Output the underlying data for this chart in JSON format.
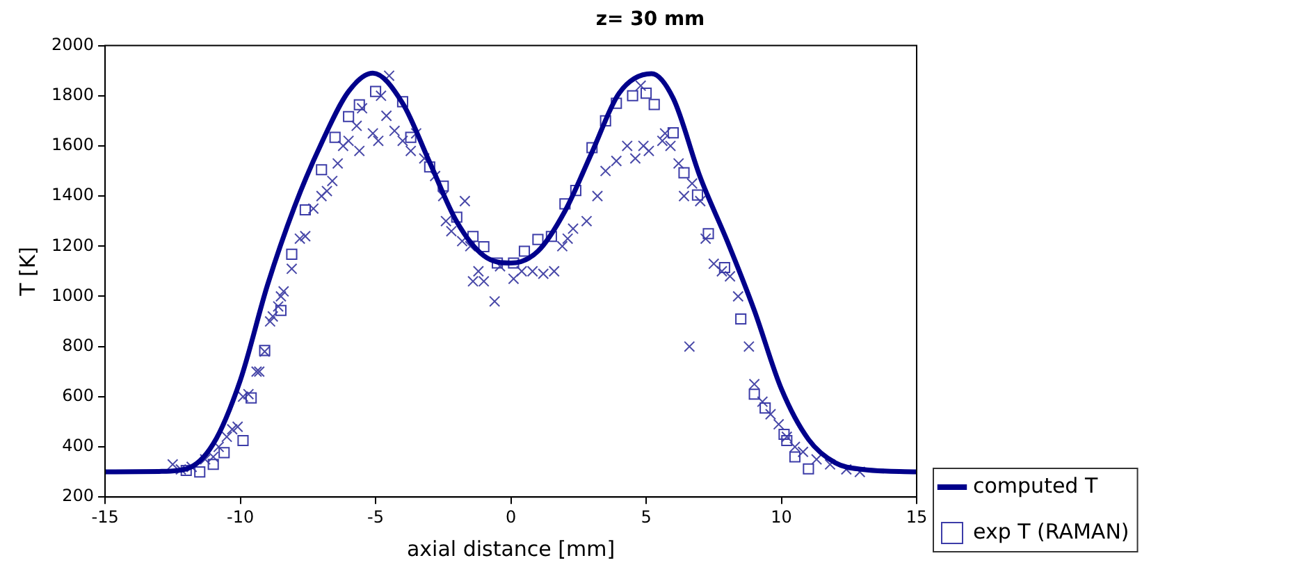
{
  "chart_data": {
    "type": "scatter",
    "title": "z= 30 mm",
    "xlabel": "axial distance [mm]",
    "ylabel": "T [K]",
    "xlim": [
      -15,
      15
    ],
    "xticks": [
      -15,
      -10,
      -5,
      0,
      5,
      10,
      15
    ],
    "ylim": [
      200,
      2000
    ],
    "yticks": [
      200,
      400,
      600,
      800,
      1000,
      1200,
      1400,
      1600,
      1800,
      2000
    ],
    "grid": false,
    "legend": "bottom right",
    "series": [
      {
        "name": "computed T",
        "type": "line",
        "marker": "none",
        "line_style": "solid",
        "color": "#00008b",
        "x": [
          -15,
          -13,
          -12,
          -11,
          -10,
          -9,
          -8,
          -7,
          -6,
          -5.1,
          -4,
          -3,
          -2,
          -1,
          0,
          1,
          2,
          3,
          4,
          5.2,
          6,
          7,
          8,
          9,
          10,
          11,
          12,
          13,
          15
        ],
        "values": [
          300,
          302,
          312,
          412,
          666,
          1044,
          1357,
          1611,
          1817,
          1890,
          1770,
          1534,
          1298,
          1162,
          1133,
          1180,
          1340,
          1575,
          1810,
          1888,
          1790,
          1475,
          1220,
          944,
          631,
          430,
          336,
          310,
          300
        ]
      },
      {
        "name": "exp T (RAMAN)",
        "type": "scatter",
        "marker": "square",
        "color": "#3c3ca8",
        "x": [
          -12,
          -11.5,
          -11,
          -10.6,
          -9.9,
          -9.6,
          -9.1,
          -8.5,
          -8.1,
          -7.6,
          -7,
          -6.5,
          -6,
          -5.6,
          -5,
          -4,
          -3.7,
          -3,
          -2.5,
          -2,
          -1.4,
          -1,
          -0.5,
          0.1,
          0.5,
          1,
          1.5,
          2,
          2.4,
          3,
          3.5,
          3.9,
          4.5,
          5,
          5.3,
          6,
          6.4,
          6.9,
          7.3,
          7.9,
          8.5,
          9,
          9.4,
          10.1,
          10.2,
          10.5,
          11
        ],
        "values": [
          306,
          300,
          330,
          377,
          425,
          595,
          784,
          944,
          1168,
          1345,
          1505,
          1634,
          1717,
          1764,
          1817,
          1776,
          1634,
          1516,
          1440,
          1316,
          1239,
          1198,
          1133,
          1133,
          1180,
          1227,
          1239,
          1369,
          1422,
          1593,
          1700,
          1770,
          1800,
          1810,
          1765,
          1652,
          1493,
          1404,
          1250,
          1115,
          910,
          610,
          555,
          450,
          425,
          360,
          312
        ]
      },
      {
        "type": "scatter",
        "marker": "cross",
        "color": "#4848a8",
        "x": [
          -12.5,
          -12.2,
          -11.8,
          -11.3,
          -11,
          -10.8,
          -10.5,
          -10.3,
          -10.1,
          -9.9,
          -9.7,
          -9.4,
          -9.3,
          -9.1,
          -8.9,
          -8.8,
          -8.6,
          -8.5,
          -8.4,
          -8.1,
          -7.8,
          -7.6,
          -7.3,
          -7,
          -6.8,
          -6.6,
          -6.4,
          -6.2,
          -6,
          -5.7,
          -5.6,
          -5.5,
          -5.1,
          -4.9,
          -4.8,
          -4.6,
          -4.5,
          -4.3,
          -4,
          -3.7,
          -3.5,
          -3.2,
          -2.8,
          -2.5,
          -2.4,
          -2.2,
          -1.8,
          -1.7,
          -1.5,
          -1.4,
          -1.2,
          -1,
          -0.6,
          -0.4,
          0.1,
          0.4,
          0.8,
          1.2,
          1.6,
          1.9,
          2.1,
          2.3,
          2.8,
          3.2,
          3.5,
          3.9,
          4.3,
          4.6,
          4.8,
          4.9,
          5.1,
          5.6,
          5.7,
          5.9,
          6.2,
          6.4,
          6.6,
          6.7,
          7,
          7.2,
          7.5,
          7.8,
          8.1,
          8.4,
          8.8,
          9,
          9.3,
          9.6,
          9.9,
          10.2,
          10.5,
          10.8,
          11.3,
          11.8,
          12.4,
          12.9
        ],
        "values": [
          330,
          310,
          320,
          350,
          360,
          400,
          440,
          470,
          480,
          600,
          610,
          700,
          700,
          780,
          900,
          920,
          960,
          1000,
          1020,
          1110,
          1230,
          1240,
          1350,
          1400,
          1420,
          1460,
          1530,
          1600,
          1620,
          1680,
          1580,
          1750,
          1650,
          1620,
          1800,
          1720,
          1880,
          1660,
          1620,
          1580,
          1650,
          1550,
          1480,
          1400,
          1300,
          1260,
          1220,
          1380,
          1200,
          1060,
          1100,
          1060,
          980,
          1120,
          1070,
          1100,
          1100,
          1090,
          1100,
          1200,
          1230,
          1270,
          1300,
          1400,
          1500,
          1540,
          1600,
          1550,
          1840,
          1600,
          1580,
          1620,
          1650,
          1600,
          1530,
          1400,
          800,
          1450,
          1380,
          1230,
          1130,
          1100,
          1080,
          1000,
          800,
          650,
          580,
          530,
          490,
          440,
          400,
          380,
          350,
          330,
          310,
          300
        ]
      }
    ]
  }
}
